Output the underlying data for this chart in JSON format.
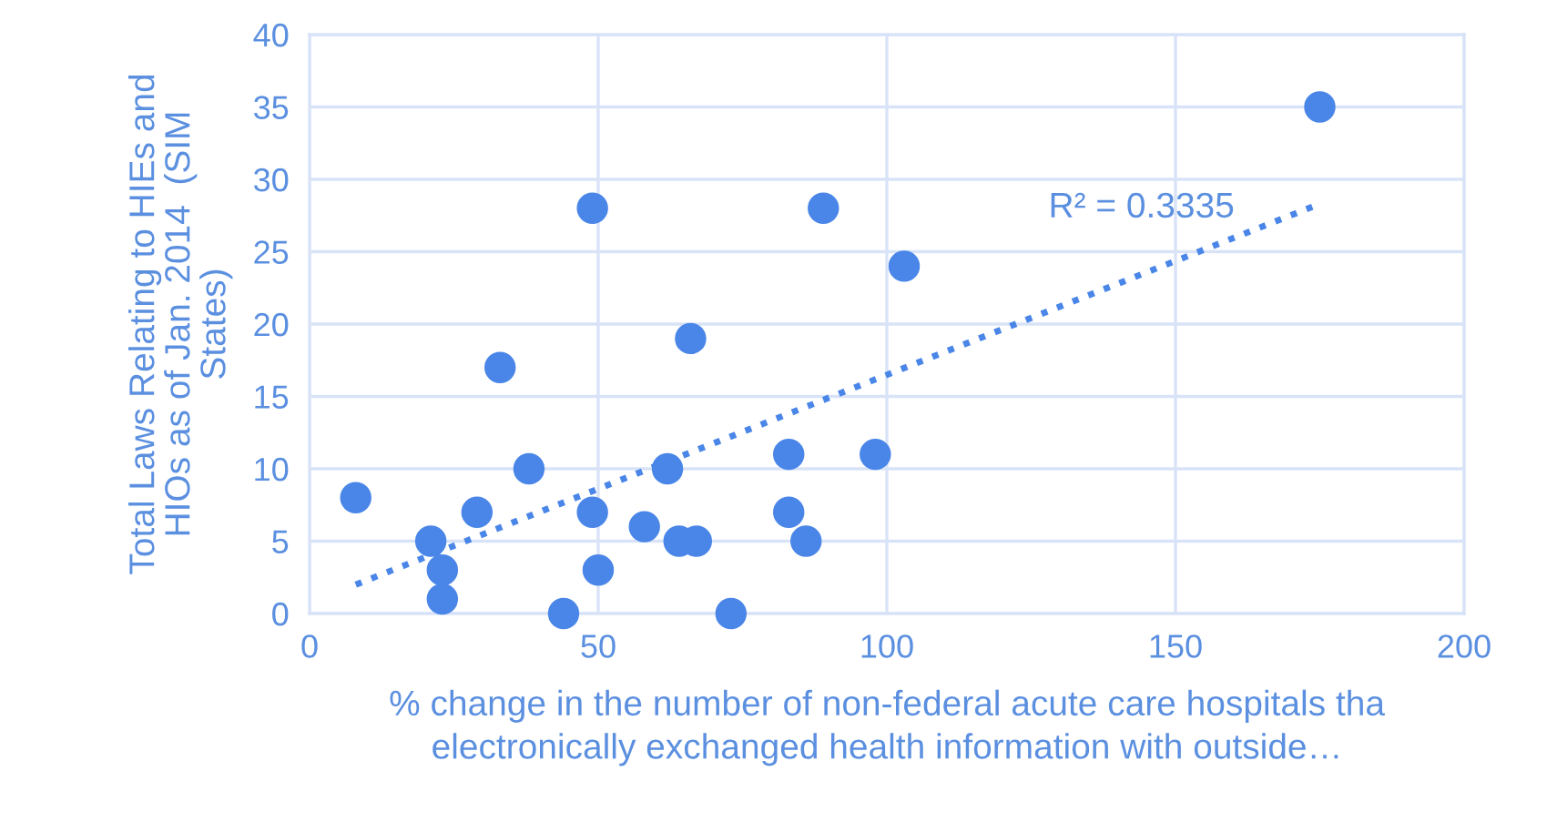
{
  "chart_data": {
    "type": "scatter",
    "xlabel": "% change in the number of non-federal acute care hospitals tha\nelectronically exchanged health information with outside…",
    "ylabel": "Total Laws Relating to HIEs and\nHIOs as of Jan. 2014  (SIM\nStates)",
    "series": [
      {
        "color": "#4a86e8",
        "marker": "circle",
        "x": [
          8,
          21,
          23,
          23,
          29,
          33,
          38,
          44,
          49,
          49,
          50,
          58,
          62,
          64,
          66,
          67,
          73,
          83,
          83,
          86,
          89,
          98,
          103,
          175
        ],
        "values": [
          8,
          5,
          3,
          1,
          7,
          17,
          10,
          0,
          28,
          7,
          3,
          6,
          10,
          5,
          19,
          5,
          0,
          11,
          7,
          5,
          28,
          11,
          24,
          35
        ]
      },
      {
        "type": "line",
        "color": "#4a86e8",
        "line_style": "dotted",
        "x": [
          8,
          175
        ],
        "values": [
          2,
          28.3
        ]
      }
    ],
    "annotations": [
      "R² = 0.3335"
    ],
    "xlim": [
      0,
      200
    ],
    "xticks": [
      0,
      50,
      100,
      150,
      200
    ],
    "ylim": [
      0,
      40
    ],
    "yticks": [
      0,
      5,
      10,
      15,
      20,
      25,
      30,
      35,
      40
    ],
    "grid": true
  }
}
